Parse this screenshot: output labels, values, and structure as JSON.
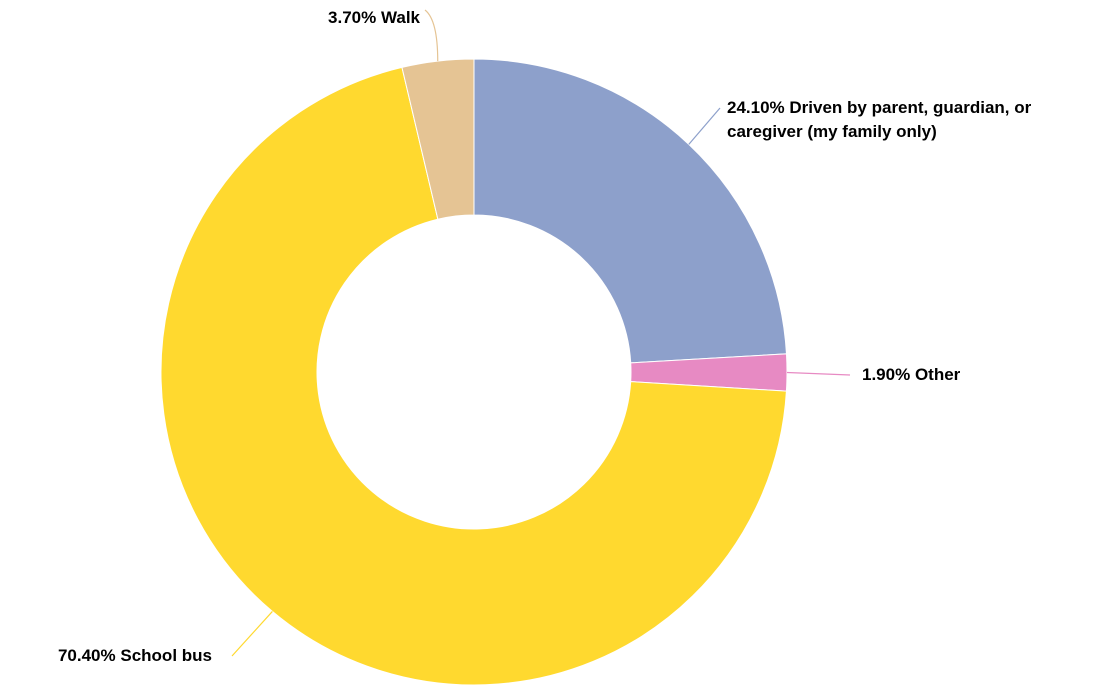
{
  "chart_data": {
    "type": "donut",
    "categories": [
      "Driven by parent, guardian, or caregiver (my family only)",
      "Other",
      "School bus",
      "Walk"
    ],
    "values": [
      24.1,
      1.9,
      70.4,
      3.7
    ],
    "value_labels": [
      "24.10%",
      "1.90%",
      "70.40%",
      "3.70%"
    ],
    "colors": [
      "#8da0cb",
      "#e78ac3",
      "#ffd92f",
      "#e5c494"
    ]
  }
}
